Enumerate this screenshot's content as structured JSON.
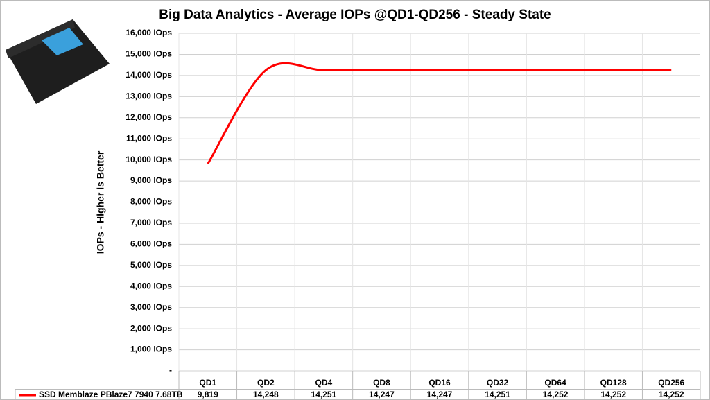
{
  "chart_data": {
    "type": "line",
    "title": "Big Data Analytics  - Average IOPs @QD1-QD256  - Steady State",
    "y_label": "IOPs  - Higher is Better",
    "categories": [
      "QD1",
      "QD2",
      "QD4",
      "QD8",
      "QD16",
      "QD32",
      "QD64",
      "QD128",
      "QD256"
    ],
    "series": [
      {
        "name": "SSD Memblaze PBlaze7 7940 7.68TB",
        "color": "#ff0000",
        "values": [
          9819,
          14248,
          14251,
          14247,
          14247,
          14251,
          14252,
          14252,
          14252
        ],
        "value_labels": [
          "9,819",
          "14,248",
          "14,251",
          "14,247",
          "14,247",
          "14,251",
          "14,252",
          "14,252",
          "14,252"
        ]
      }
    ],
    "ylim": [
      0,
      16000
    ],
    "yticks": [
      {
        "value": 0,
        "label": "-"
      },
      {
        "value": 1000,
        "label": "1,000 IOps"
      },
      {
        "value": 2000,
        "label": "2,000 IOps"
      },
      {
        "value": 3000,
        "label": "3,000 IOps"
      },
      {
        "value": 4000,
        "label": "4,000 IOps"
      },
      {
        "value": 5000,
        "label": "5,000 IOps"
      },
      {
        "value": 6000,
        "label": "6,000 IOps"
      },
      {
        "value": 7000,
        "label": "7,000 IOps"
      },
      {
        "value": 8000,
        "label": "8,000 IOps"
      },
      {
        "value": 9000,
        "label": "9,000 IOps"
      },
      {
        "value": 10000,
        "label": "10,000 IOps"
      },
      {
        "value": 11000,
        "label": "11,000 IOps"
      },
      {
        "value": 12000,
        "label": "12,000 IOps"
      },
      {
        "value": 13000,
        "label": "13,000 IOps"
      },
      {
        "value": 14000,
        "label": "14,000 IOps"
      },
      {
        "value": 15000,
        "label": "15,000 IOps"
      },
      {
        "value": 16000,
        "label": "16,000 IOps"
      }
    ],
    "grid": true,
    "smooth": true
  }
}
